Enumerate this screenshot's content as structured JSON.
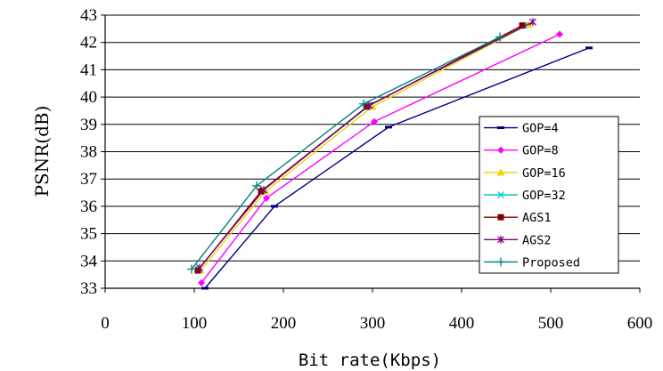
{
  "chart_data": {
    "type": "line",
    "title": "",
    "xlabel": "Bit rate(Kbps)",
    "ylabel": "PSNR(dB)",
    "xlim": [
      0,
      600
    ],
    "ylim": [
      33,
      43
    ],
    "xticks": [
      0,
      100,
      200,
      300,
      400,
      500,
      600
    ],
    "yticks": [
      33,
      34,
      35,
      36,
      37,
      38,
      39,
      40,
      41,
      42,
      43
    ],
    "grid": "horizontal",
    "legend_position": "right",
    "series": [
      {
        "name": "GOP=4",
        "color": "#000080",
        "marker": "dash",
        "x": [
          112,
          190,
          318,
          543
        ],
        "y": [
          33.0,
          36.0,
          38.9,
          41.8
        ]
      },
      {
        "name": "GOP=8",
        "color": "#ff00ff",
        "marker": "diamond",
        "x": [
          108,
          181,
          302,
          510
        ],
        "y": [
          33.2,
          36.3,
          39.1,
          42.3
        ]
      },
      {
        "name": "GOP=16",
        "color": "#e8d800",
        "marker": "triangle",
        "x": [
          107,
          180,
          300,
          475
        ],
        "y": [
          33.65,
          36.55,
          39.65,
          42.65
        ]
      },
      {
        "name": "GOP=32",
        "color": "#00cccc",
        "marker": "x",
        "x": [
          105,
          177,
          297,
          470
        ],
        "y": [
          33.7,
          36.6,
          39.7,
          42.62
        ]
      },
      {
        "name": "AGS1",
        "color": "#800000",
        "marker": "square",
        "x": [
          104,
          175,
          294,
          468
        ],
        "y": [
          33.65,
          36.55,
          39.65,
          42.62
        ]
      },
      {
        "name": "AGS2",
        "color": "#800080",
        "marker": "star",
        "x": [
          106,
          178,
          296,
          480
        ],
        "y": [
          33.75,
          36.6,
          39.7,
          42.75
        ]
      },
      {
        "name": "Proposed",
        "color": "#008080",
        "marker": "plus",
        "x": [
          97,
          170,
          290,
          443
        ],
        "y": [
          33.7,
          36.75,
          39.75,
          42.2
        ]
      }
    ]
  }
}
